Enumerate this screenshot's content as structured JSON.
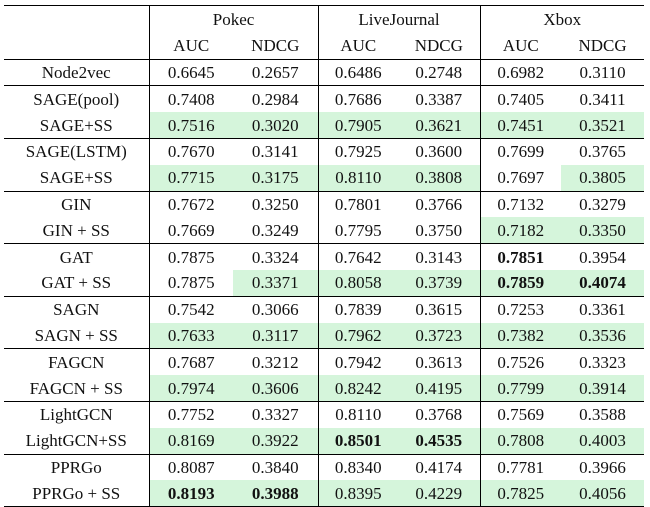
{
  "datasets": [
    "Pokec",
    "LiveJournal",
    "Xbox"
  ],
  "metrics": [
    "AUC",
    "NDCG"
  ],
  "highlight_color": "#d5f5db",
  "rows": [
    {
      "model": "Node2vec",
      "values": [
        "0.6645",
        "0.2657",
        "0.6486",
        "0.2748",
        "0.6982",
        "0.3110"
      ],
      "highlight": [
        false,
        false,
        false,
        false,
        false,
        false
      ],
      "bold": [
        false,
        false,
        false,
        false,
        false,
        false
      ],
      "sep": true
    },
    {
      "model": "SAGE(pool)",
      "values": [
        "0.7408",
        "0.2984",
        "0.7686",
        "0.3387",
        "0.7405",
        "0.3411"
      ],
      "highlight": [
        false,
        false,
        false,
        false,
        false,
        false
      ],
      "bold": [
        false,
        false,
        false,
        false,
        false,
        false
      ],
      "sep": true
    },
    {
      "model": "SAGE+SS",
      "values": [
        "0.7516",
        "0.3020",
        "0.7905",
        "0.3621",
        "0.7451",
        "0.3521"
      ],
      "highlight": [
        true,
        true,
        true,
        true,
        true,
        true
      ],
      "bold": [
        false,
        false,
        false,
        false,
        false,
        false
      ],
      "sep": false
    },
    {
      "model": "SAGE(LSTM)",
      "values": [
        "0.7670",
        "0.3141",
        "0.7925",
        "0.3600",
        "0.7699",
        "0.3765"
      ],
      "highlight": [
        false,
        false,
        false,
        false,
        false,
        false
      ],
      "bold": [
        false,
        false,
        false,
        false,
        false,
        false
      ],
      "sep": true
    },
    {
      "model": "SAGE+SS",
      "values": [
        "0.7715",
        "0.3175",
        "0.8110",
        "0.3808",
        "0.7697",
        "0.3805"
      ],
      "highlight": [
        true,
        true,
        true,
        true,
        false,
        true
      ],
      "bold": [
        false,
        false,
        false,
        false,
        false,
        false
      ],
      "sep": false
    },
    {
      "model": "GIN",
      "values": [
        "0.7672",
        "0.3250",
        "0.7801",
        "0.3766",
        "0.7132",
        "0.3279"
      ],
      "highlight": [
        false,
        false,
        false,
        false,
        false,
        false
      ],
      "bold": [
        false,
        false,
        false,
        false,
        false,
        false
      ],
      "sep": true
    },
    {
      "model": "GIN + SS",
      "values": [
        "0.7669",
        "0.3249",
        "0.7795",
        "0.3750",
        "0.7182",
        "0.3350"
      ],
      "highlight": [
        false,
        false,
        false,
        false,
        true,
        true
      ],
      "bold": [
        false,
        false,
        false,
        false,
        false,
        false
      ],
      "sep": false
    },
    {
      "model": "GAT",
      "values": [
        "0.7875",
        "0.3324",
        "0.7642",
        "0.3143",
        "0.7851",
        "0.3954"
      ],
      "highlight": [
        false,
        false,
        false,
        false,
        false,
        false
      ],
      "bold": [
        false,
        false,
        false,
        false,
        true,
        false
      ],
      "sep": true
    },
    {
      "model": "GAT + SS",
      "values": [
        "0.7875",
        "0.3371",
        "0.8058",
        "0.3739",
        "0.7859",
        "0.4074"
      ],
      "highlight": [
        false,
        true,
        true,
        true,
        true,
        true
      ],
      "bold": [
        false,
        false,
        false,
        false,
        true,
        true
      ],
      "sep": false
    },
    {
      "model": "SAGN",
      "values": [
        "0.7542",
        "0.3066",
        "0.7839",
        "0.3615",
        "0.7253",
        "0.3361"
      ],
      "highlight": [
        false,
        false,
        false,
        false,
        false,
        false
      ],
      "bold": [
        false,
        false,
        false,
        false,
        false,
        false
      ],
      "sep": true
    },
    {
      "model": "SAGN + SS",
      "values": [
        "0.7633",
        "0.3117",
        "0.7962",
        "0.3723",
        "0.7382",
        "0.3536"
      ],
      "highlight": [
        true,
        true,
        true,
        true,
        true,
        true
      ],
      "bold": [
        false,
        false,
        false,
        false,
        false,
        false
      ],
      "sep": false
    },
    {
      "model": "FAGCN",
      "values": [
        "0.7687",
        "0.3212",
        "0.7942",
        "0.3613",
        "0.7526",
        "0.3323"
      ],
      "highlight": [
        false,
        false,
        false,
        false,
        false,
        false
      ],
      "bold": [
        false,
        false,
        false,
        false,
        false,
        false
      ],
      "sep": true
    },
    {
      "model": "FAGCN + SS",
      "values": [
        "0.7974",
        "0.3606",
        "0.8242",
        "0.4195",
        "0.7799",
        "0.3914"
      ],
      "highlight": [
        true,
        true,
        true,
        true,
        true,
        true
      ],
      "bold": [
        false,
        false,
        false,
        false,
        false,
        false
      ],
      "sep": false
    },
    {
      "model": "LightGCN",
      "values": [
        "0.7752",
        "0.3327",
        "0.8110",
        "0.3768",
        "0.7569",
        "0.3588"
      ],
      "highlight": [
        false,
        false,
        false,
        false,
        false,
        false
      ],
      "bold": [
        false,
        false,
        false,
        false,
        false,
        false
      ],
      "sep": true
    },
    {
      "model": "LightGCN+SS",
      "values": [
        "0.8169",
        "0.3922",
        "0.8501",
        "0.4535",
        "0.7808",
        "0.4003"
      ],
      "highlight": [
        true,
        true,
        true,
        true,
        true,
        true
      ],
      "bold": [
        false,
        false,
        true,
        true,
        false,
        false
      ],
      "sep": false
    },
    {
      "model": "PPRGo",
      "values": [
        "0.8087",
        "0.3840",
        "0.8340",
        "0.4174",
        "0.7781",
        "0.3966"
      ],
      "highlight": [
        false,
        false,
        false,
        false,
        false,
        false
      ],
      "bold": [
        false,
        false,
        false,
        false,
        false,
        false
      ],
      "sep": true
    },
    {
      "model": "PPRGo + SS",
      "values": [
        "0.8193",
        "0.3988",
        "0.8395",
        "0.4229",
        "0.7825",
        "0.4056"
      ],
      "highlight": [
        true,
        true,
        true,
        true,
        true,
        true
      ],
      "bold": [
        true,
        true,
        false,
        false,
        false,
        false
      ],
      "sep": false
    }
  ]
}
